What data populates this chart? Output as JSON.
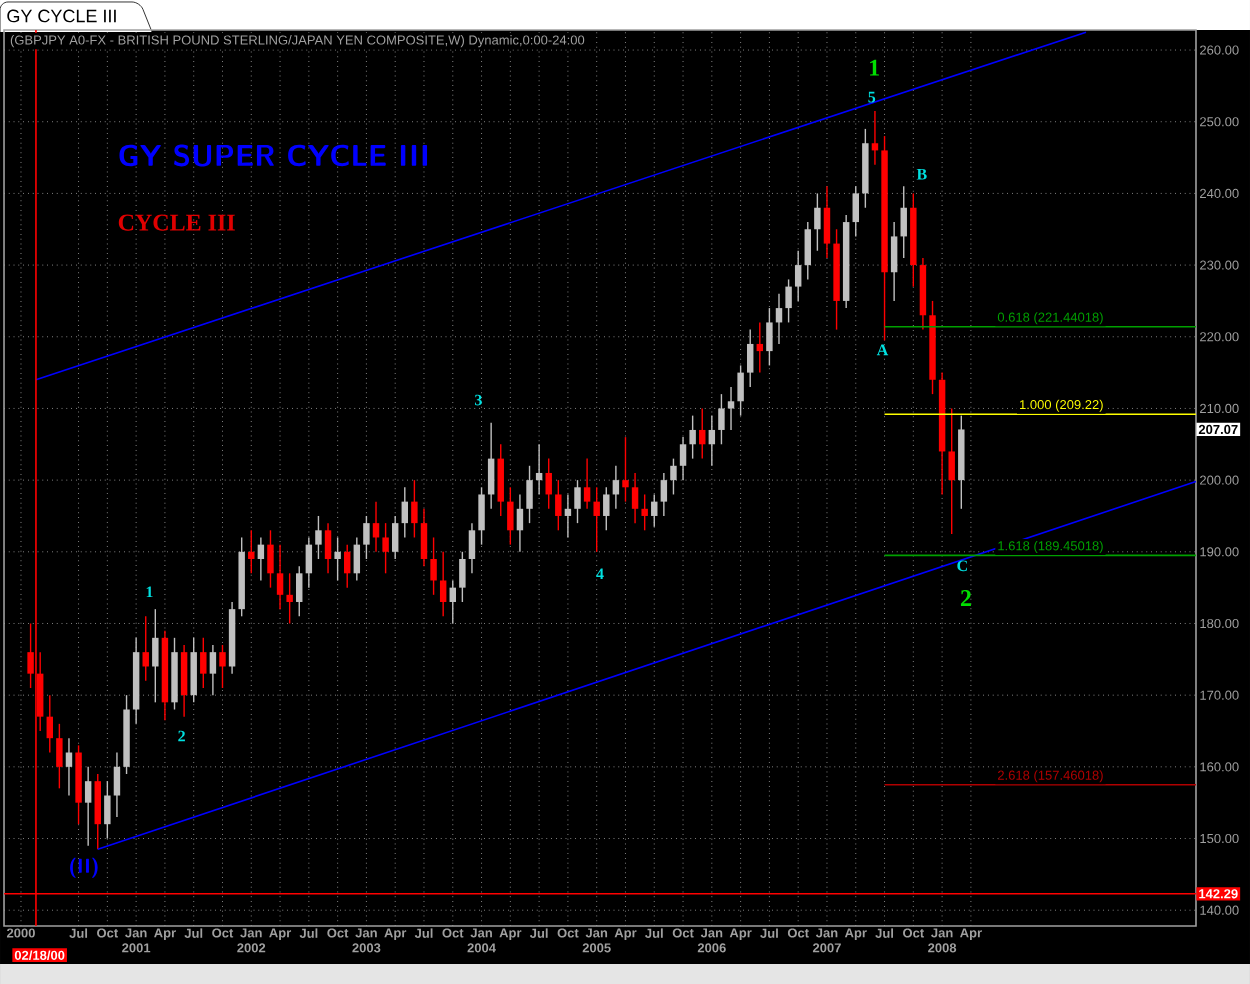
{
  "chart_data": {
    "type": "candlestick",
    "title": "GY CYCLE III",
    "subtitle": "(GBPJPY A0-FX - BRITISH POUND STERLING/JAPAN YEN COMPOSITE,W) Dynamic,0:00-24:00",
    "xlim": [
      "1999-11-08",
      "2010-03-15"
    ],
    "ylim": [
      137.8,
      262.8
    ],
    "xticks": [
      {
        "value": "2000-01",
        "label": "2000"
      },
      {
        "value": "2000-07",
        "label": "Jul"
      },
      {
        "value": "2000-10",
        "label": "Oct"
      },
      {
        "value": "2001-01",
        "label": "Jan 2001"
      },
      {
        "value": "2001-04",
        "label": "Apr"
      },
      {
        "value": "2001-07",
        "label": "Jul"
      },
      {
        "value": "2001-10",
        "label": "Oct"
      },
      {
        "value": "2002-01",
        "label": "Jan 2002"
      },
      {
        "value": "2002-04",
        "label": "Apr"
      },
      {
        "value": "2002-07",
        "label": "Jul"
      },
      {
        "value": "2002-10",
        "label": "Oct"
      },
      {
        "value": "2003-01",
        "label": "Jan 2003"
      },
      {
        "value": "2003-04",
        "label": "Apr"
      },
      {
        "value": "2003-07",
        "label": "Jul"
      },
      {
        "value": "2003-10",
        "label": "Oct"
      },
      {
        "value": "2004-01",
        "label": "Jan 2004"
      },
      {
        "value": "2004-04",
        "label": "Apr"
      },
      {
        "value": "2004-07",
        "label": "Jul"
      },
      {
        "value": "2004-10",
        "label": "Oct"
      },
      {
        "value": "2005-01",
        "label": "Jan 2005"
      },
      {
        "value": "2005-04",
        "label": "Apr"
      },
      {
        "value": "2005-07",
        "label": "Jul"
      },
      {
        "value": "2005-10",
        "label": "Oct"
      },
      {
        "value": "2006-01",
        "label": "Jan 2006"
      },
      {
        "value": "2006-04",
        "label": "Apr"
      },
      {
        "value": "2006-07",
        "label": "Jul"
      },
      {
        "value": "2006-10",
        "label": "Oct"
      },
      {
        "value": "2007-01",
        "label": "Jan 2007"
      },
      {
        "value": "2007-04",
        "label": "Apr"
      },
      {
        "value": "2007-07",
        "label": "Jul"
      },
      {
        "value": "2007-10",
        "label": "Oct"
      },
      {
        "value": "2008-01",
        "label": "Jan 2008"
      },
      {
        "value": "2008-04",
        "label": "Apr"
      }
    ],
    "yticks": [
      {
        "value": 140,
        "label": "140.00"
      },
      {
        "value": 150,
        "label": "150.00"
      },
      {
        "value": 160,
        "label": "160.00"
      },
      {
        "value": 170,
        "label": "170.00"
      },
      {
        "value": 180,
        "label": "180.00"
      },
      {
        "value": 190,
        "label": "190.00"
      },
      {
        "value": 200,
        "label": "200.00"
      },
      {
        "value": 210,
        "label": "210.00"
      },
      {
        "value": 220,
        "label": "220.00"
      },
      {
        "value": 230,
        "label": "230.00"
      },
      {
        "value": 240,
        "label": "240.00"
      },
      {
        "value": 250,
        "label": "250.00"
      },
      {
        "value": 260,
        "label": "260.00"
      }
    ],
    "grid": true,
    "series": [
      {
        "x": [
          "2000-02",
          "2000-03",
          "2000-04",
          "2000-05",
          "2000-06",
          "2000-07",
          "2000-08",
          "2000-09",
          "2000-10",
          "2000-11",
          "2000-12",
          "2001-01",
          "2001-02",
          "2001-03",
          "2001-04",
          "2001-05",
          "2001-06",
          "2001-07",
          "2001-08",
          "2001-09",
          "2001-10",
          "2001-11",
          "2001-12",
          "2002-01",
          "2002-02",
          "2002-03",
          "2002-04",
          "2002-05",
          "2002-06",
          "2002-07",
          "2002-08",
          "2002-09",
          "2002-10",
          "2002-11",
          "2002-12",
          "2003-01",
          "2003-02",
          "2003-03",
          "2003-04",
          "2003-05",
          "2003-06",
          "2003-07",
          "2003-08",
          "2003-09",
          "2003-10",
          "2003-11",
          "2003-12",
          "2004-01",
          "2004-02",
          "2004-03",
          "2004-04",
          "2004-05",
          "2004-06",
          "2004-07",
          "2004-08",
          "2004-09",
          "2004-10",
          "2004-11",
          "2004-12",
          "2005-01",
          "2005-02",
          "2005-03",
          "2005-04",
          "2005-05",
          "2005-06",
          "2005-07",
          "2005-08",
          "2005-09",
          "2005-10",
          "2005-11",
          "2005-12",
          "2006-01",
          "2006-02",
          "2006-03",
          "2006-04",
          "2006-05",
          "2006-06",
          "2006-07",
          "2006-08",
          "2006-09",
          "2006-10",
          "2006-11",
          "2006-12",
          "2007-01",
          "2007-02",
          "2007-03",
          "2007-04",
          "2007-05",
          "2007-06",
          "2007-07",
          "2007-08",
          "2007-09",
          "2007-10",
          "2007-11",
          "2007-12",
          "2008-01",
          "2008-02",
          "2008-03"
        ],
        "ohlc": [
          [
            176,
            180,
            171,
            173
          ],
          [
            173,
            176,
            165,
            167
          ],
          [
            167,
            170,
            162,
            164
          ],
          [
            164,
            166,
            157,
            160
          ],
          [
            160,
            164,
            156,
            162
          ],
          [
            162,
            163,
            152,
            155
          ],
          [
            155,
            160,
            149,
            158
          ],
          [
            158,
            159,
            148.5,
            152
          ],
          [
            152,
            158,
            150,
            156
          ],
          [
            156,
            162,
            153,
            160
          ],
          [
            160,
            170,
            159,
            168
          ],
          [
            168,
            178,
            166,
            176
          ],
          [
            176,
            181,
            172,
            174
          ],
          [
            174,
            182,
            169,
            178
          ],
          [
            178,
            179,
            166.5,
            169
          ],
          [
            169,
            178,
            168,
            176
          ],
          [
            176,
            177,
            167,
            170
          ],
          [
            170,
            178,
            169,
            176
          ],
          [
            176,
            178,
            171,
            173
          ],
          [
            173,
            177,
            170,
            176
          ],
          [
            176,
            177,
            171,
            174
          ],
          [
            174,
            183,
            173,
            182
          ],
          [
            182,
            192,
            181,
            190
          ],
          [
            190,
            193,
            187,
            189
          ],
          [
            189,
            192,
            186,
            191
          ],
          [
            191,
            193,
            185,
            187
          ],
          [
            187,
            191,
            182,
            184
          ],
          [
            184,
            187,
            180,
            183
          ],
          [
            183,
            188,
            181,
            187
          ],
          [
            187,
            192,
            185,
            191
          ],
          [
            191,
            195,
            189,
            193
          ],
          [
            193,
            194,
            187,
            189
          ],
          [
            189,
            192,
            186,
            190
          ],
          [
            190,
            191,
            185,
            187
          ],
          [
            187,
            192,
            186,
            191
          ],
          [
            191,
            195,
            189,
            194
          ],
          [
            194,
            197,
            190,
            192
          ],
          [
            192,
            194,
            187,
            190
          ],
          [
            190,
            195,
            189,
            194
          ],
          [
            194,
            199,
            192,
            197
          ],
          [
            197,
            200,
            192,
            194
          ],
          [
            194,
            196,
            188,
            189
          ],
          [
            189,
            192,
            184,
            186
          ],
          [
            186,
            190,
            181,
            183
          ],
          [
            183,
            186,
            180,
            185
          ],
          [
            185,
            190,
            183,
            189
          ],
          [
            189,
            194,
            187,
            193
          ],
          [
            193,
            199,
            191,
            198
          ],
          [
            198,
            208,
            196,
            203
          ],
          [
            203,
            205,
            195,
            197
          ],
          [
            197,
            199,
            191,
            193
          ],
          [
            193,
            198,
            190,
            196
          ],
          [
            196,
            202,
            194,
            200
          ],
          [
            200,
            205,
            198,
            201
          ],
          [
            201,
            203,
            196,
            198
          ],
          [
            198,
            200,
            193,
            195
          ],
          [
            195,
            198,
            192,
            196
          ],
          [
            196,
            200,
            194,
            199
          ],
          [
            199,
            203,
            196,
            197
          ],
          [
            197,
            199,
            190,
            195
          ],
          [
            195,
            199,
            193,
            198
          ],
          [
            198,
            202,
            196,
            200
          ],
          [
            200,
            206,
            197,
            199
          ],
          [
            199,
            201,
            194,
            196
          ],
          [
            196,
            198,
            193,
            195
          ],
          [
            195,
            198,
            193.5,
            197
          ],
          [
            197,
            201,
            195,
            200
          ],
          [
            200,
            203,
            198,
            202
          ],
          [
            202,
            206,
            200,
            205
          ],
          [
            205,
            209,
            203,
            207
          ],
          [
            207,
            210,
            203,
            205
          ],
          [
            205,
            209,
            202,
            207
          ],
          [
            207,
            212,
            205,
            210
          ],
          [
            210,
            213,
            207,
            211
          ],
          [
            211,
            216,
            209,
            215
          ],
          [
            215,
            221,
            213,
            219
          ],
          [
            219,
            222,
            215,
            218
          ],
          [
            218,
            224,
            216,
            222
          ],
          [
            222,
            226,
            219,
            224
          ],
          [
            224,
            228,
            222,
            227
          ],
          [
            227,
            232,
            225,
            230
          ],
          [
            230,
            236,
            228,
            235
          ],
          [
            235,
            240,
            232,
            238
          ],
          [
            238,
            241,
            231,
            233
          ],
          [
            233,
            235,
            221,
            225
          ],
          [
            225,
            237,
            224,
            236
          ],
          [
            236,
            241,
            234,
            240
          ],
          [
            240,
            249,
            238,
            247
          ],
          [
            247,
            251.5,
            244,
            246
          ],
          [
            246,
            248,
            219.5,
            229
          ],
          [
            229,
            236,
            225,
            234
          ],
          [
            234,
            241,
            231,
            238
          ],
          [
            238,
            240,
            227,
            230
          ],
          [
            230,
            231,
            221,
            223
          ],
          [
            223,
            225,
            212,
            214
          ],
          [
            214,
            215,
            198,
            204
          ],
          [
            204,
            210,
            192.5,
            200
          ],
          [
            200,
            209,
            196,
            207.07
          ]
        ],
        "colors": [
          "#ff0000",
          "#ff0000",
          "#ff0000",
          "#ff0000",
          "#c0c0c0",
          "#ff0000",
          "#c0c0c0",
          "#ff0000",
          "#c0c0c0",
          "#c0c0c0",
          "#c0c0c0",
          "#c0c0c0",
          "#ff0000",
          "#c0c0c0",
          "#ff0000",
          "#c0c0c0",
          "#ff0000",
          "#c0c0c0",
          "#ff0000",
          "#c0c0c0",
          "#ff0000",
          "#c0c0c0",
          "#c0c0c0",
          "#ff0000",
          "#c0c0c0",
          "#ff0000",
          "#ff0000",
          "#ff0000",
          "#c0c0c0",
          "#c0c0c0",
          "#c0c0c0",
          "#ff0000",
          "#c0c0c0",
          "#ff0000",
          "#c0c0c0",
          "#c0c0c0",
          "#ff0000",
          "#ff0000",
          "#c0c0c0",
          "#c0c0c0",
          "#ff0000",
          "#ff0000",
          "#ff0000",
          "#ff0000",
          "#c0c0c0",
          "#c0c0c0",
          "#c0c0c0",
          "#c0c0c0",
          "#c0c0c0",
          "#ff0000",
          "#ff0000",
          "#c0c0c0",
          "#c0c0c0",
          "#c0c0c0",
          "#ff0000",
          "#ff0000",
          "#c0c0c0",
          "#c0c0c0",
          "#ff0000",
          "#ff0000",
          "#c0c0c0",
          "#c0c0c0",
          "#ff0000",
          "#ff0000",
          "#ff0000",
          "#c0c0c0",
          "#c0c0c0",
          "#c0c0c0",
          "#c0c0c0",
          "#c0c0c0",
          "#ff0000",
          "#c0c0c0",
          "#c0c0c0",
          "#c0c0c0",
          "#c0c0c0",
          "#c0c0c0",
          "#ff0000",
          "#c0c0c0",
          "#c0c0c0",
          "#c0c0c0",
          "#c0c0c0",
          "#c0c0c0",
          "#c0c0c0",
          "#ff0000",
          "#ff0000",
          "#c0c0c0",
          "#c0c0c0",
          "#c0c0c0",
          "#ff0000",
          "#ff0000",
          "#c0c0c0",
          "#c0c0c0",
          "#ff0000",
          "#ff0000",
          "#ff0000",
          "#ff0000",
          "#ff0000",
          "#c0c0c0"
        ]
      },
      {
        "type": "line",
        "color": "#0000ff",
        "x": [
          "2000-02-18",
          "2009-04"
        ],
        "values": [
          214,
          262.5
        ]
      },
      {
        "type": "line",
        "color": "#0000ff",
        "x": [
          "2000-09",
          "2010-03-15"
        ],
        "values": [
          148.5,
          199.8
        ]
      },
      {
        "type": "line",
        "name": "0.618 (221.44018)",
        "color": "#00a000",
        "x": [
          "2007-07",
          "2010-03-15"
        ],
        "values": [
          221.4,
          221.4
        ]
      },
      {
        "type": "line",
        "name": "1.000 (209.22)",
        "color": "#ffff00",
        "x": [
          "2007-07",
          "2010-03-15"
        ],
        "values": [
          209.2,
          209.2
        ]
      },
      {
        "type": "line",
        "name": "1.618 (189.45018)",
        "color": "#00a000",
        "x": [
          "2007-07",
          "2010-03-15"
        ],
        "values": [
          189.5,
          189.5
        ]
      },
      {
        "type": "line",
        "name": "2.618 (157.46018)",
        "color": "#b00000",
        "x": [
          "2007-07",
          "2010-03-15"
        ],
        "values": [
          157.5,
          157.5
        ]
      }
    ],
    "ref_lines": [
      {
        "axis": "y",
        "value": 142.29,
        "label": "142.29",
        "color": "#ff0000"
      },
      {
        "axis": "x",
        "value": "2000-02-18",
        "label": "02/18/00",
        "color": "#ff0000"
      }
    ],
    "annotations": [
      "GY SUPER CYCLE III",
      "CYCLE III",
      "(II)",
      "1",
      "2",
      "3",
      "4",
      "5",
      "1",
      "A",
      "B",
      "C",
      "2",
      {
        "text": "207.07",
        "y": 207.07
      }
    ]
  }
}
